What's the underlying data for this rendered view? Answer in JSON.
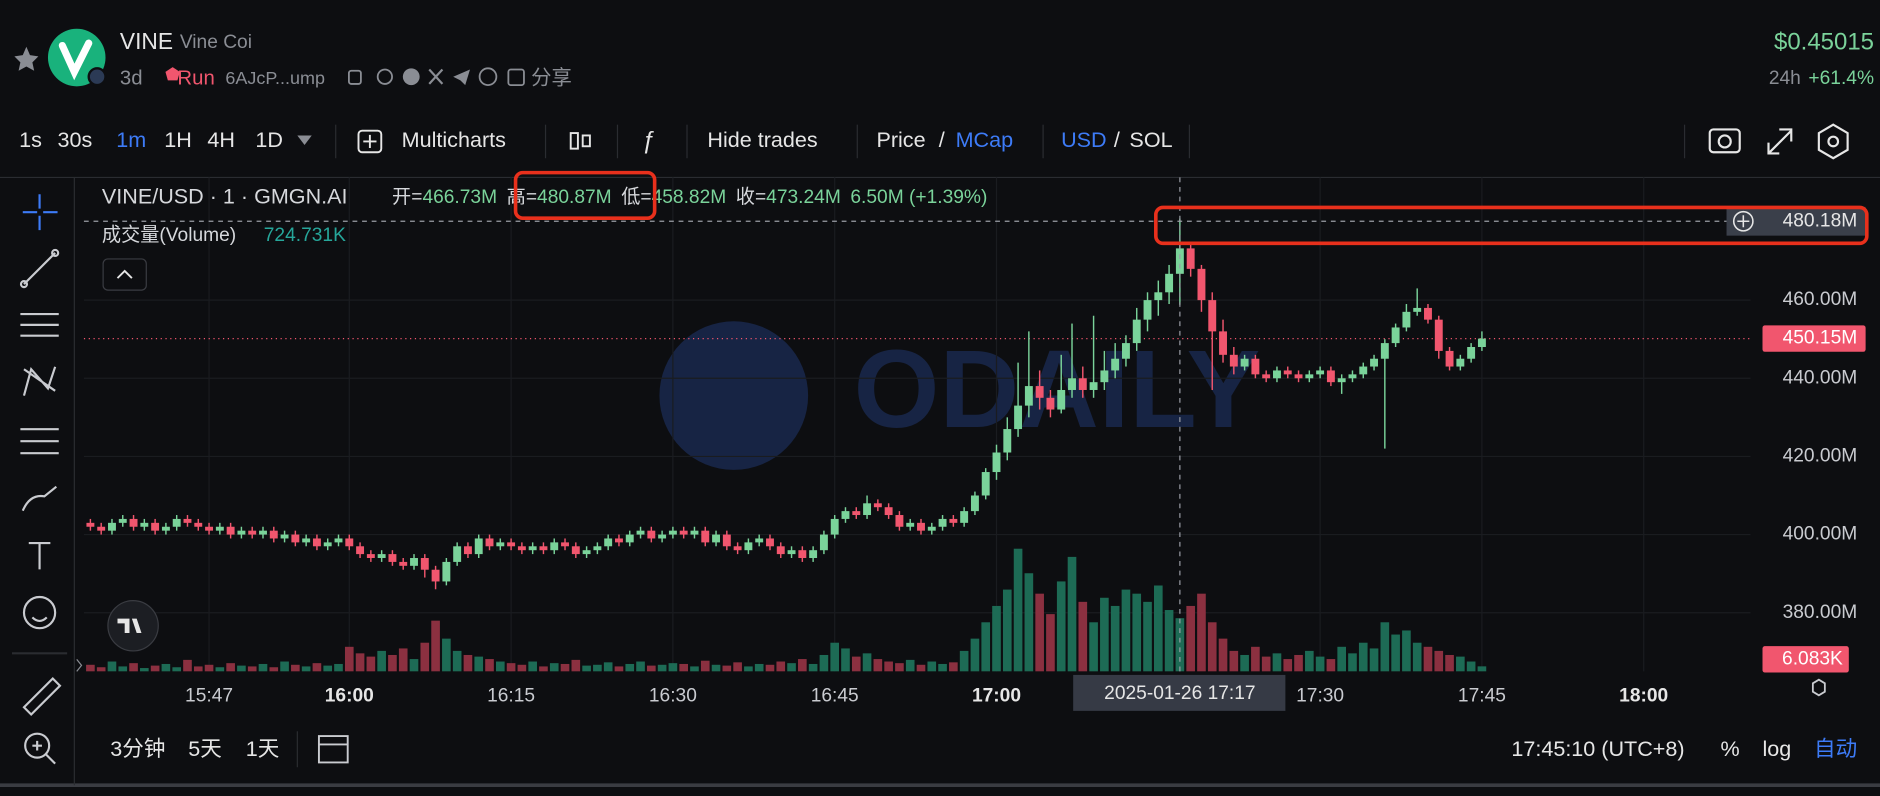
{
  "header": {
    "symbol": "VINE",
    "name": "Vine Coi",
    "age": "3d",
    "run": "Run",
    "address": "6AJcP...ump",
    "share": "分享",
    "price": "$0.45015",
    "period": "24h",
    "change": "+61.4%"
  },
  "toolbar": {
    "intervals": [
      "1s",
      "30s",
      "1m",
      "1H",
      "4H",
      "1D"
    ],
    "active_interval": 2,
    "multicharts": "Multicharts",
    "hide_trades": "Hide trades",
    "price": "Price",
    "separator": "/",
    "mcap": "MCap",
    "usd": "USD",
    "sol": "SOL"
  },
  "legend": {
    "pair": "VINE/USD · 1 · GMGN.AI",
    "items": [
      {
        "key": "开=",
        "value": "466.73M"
      },
      {
        "key": "高=",
        "value": "480.87M"
      },
      {
        "key": "低=",
        "value": "458.82M"
      },
      {
        "key": "收=",
        "value": "473.24M"
      }
    ],
    "change": "6.50M (+1.39%)",
    "volume_label": "成交量(Volume)",
    "volume_value": "724.731K"
  },
  "watermark": "ODAILY",
  "chart_data": {
    "type": "candlestick",
    "up_color": "#7ad39a",
    "down_color": "#f1566e",
    "x": [
      936,
      937,
      938,
      939,
      940,
      941,
      942,
      943,
      944,
      945,
      946,
      947,
      948,
      949,
      950,
      951,
      952,
      953,
      954,
      955,
      956,
      957,
      958,
      959,
      960,
      961,
      962,
      963,
      964,
      965,
      966,
      967,
      968,
      969,
      970,
      971,
      972,
      973,
      974,
      975,
      976,
      977,
      978,
      979,
      980,
      981,
      982,
      983,
      984,
      985,
      986,
      987,
      988,
      989,
      990,
      991,
      992,
      993,
      994,
      995,
      996,
      997,
      998,
      999,
      1000,
      1001,
      1002,
      1003,
      1004,
      1005,
      1006,
      1007,
      1008,
      1009,
      1010,
      1011,
      1012,
      1013,
      1014,
      1015,
      1016,
      1017,
      1018,
      1019,
      1020,
      1021,
      1022,
      1023,
      1024,
      1025,
      1026,
      1027,
      1028,
      1029,
      1030,
      1031,
      1032,
      1033,
      1034,
      1035,
      1036,
      1037,
      1038,
      1039,
      1040,
      1041,
      1042,
      1043,
      1044,
      1045,
      1046,
      1047,
      1048,
      1049,
      1050,
      1051,
      1052,
      1053,
      1054,
      1055,
      1056,
      1057,
      1058,
      1059,
      1060,
      1061,
      1062,
      1063,
      1064,
      1065
    ],
    "open": [
      403,
      402,
      401,
      403,
      404,
      402,
      403,
      401,
      402,
      404,
      403,
      402,
      401,
      402,
      400,
      401,
      400,
      401,
      399,
      400,
      398,
      399,
      397,
      398,
      399,
      397,
      395,
      394,
      395,
      393,
      392,
      394,
      391,
      388,
      393,
      397,
      395,
      399,
      397,
      398,
      397,
      396,
      397,
      396,
      398,
      397,
      395,
      396,
      397,
      399,
      398,
      400,
      401,
      399,
      400,
      401,
      400,
      401,
      398,
      400,
      397,
      396,
      398,
      399,
      397,
      395,
      396,
      394,
      396,
      400,
      404,
      406,
      405,
      408,
      407,
      405,
      402,
      403,
      401,
      402,
      404,
      403,
      406,
      410,
      416,
      421,
      427,
      433,
      438,
      435,
      432,
      437,
      440,
      437,
      439,
      442,
      445,
      449,
      455,
      460,
      462,
      466.73,
      473.24,
      468,
      460,
      452,
      446,
      443,
      445,
      441,
      440,
      442,
      441,
      440,
      441,
      442,
      439,
      440,
      441,
      443,
      445,
      449,
      453,
      457,
      458,
      455,
      447,
      443,
      445,
      448
    ],
    "high": [
      404,
      403,
      404,
      405,
      405,
      404,
      404,
      403,
      405,
      405,
      404,
      403,
      403,
      403,
      402,
      402,
      402,
      402,
      401,
      401,
      400,
      400,
      399,
      400,
      400,
      398,
      396,
      396,
      396,
      394,
      395,
      395,
      392,
      394,
      398,
      398,
      400,
      400,
      399,
      399,
      398,
      398,
      398,
      399,
      399,
      398,
      397,
      398,
      400,
      400,
      401,
      402,
      402,
      401,
      402,
      402,
      402,
      402,
      401,
      401,
      398,
      399,
      400,
      400,
      398,
      397,
      397,
      397,
      401,
      405,
      407,
      407,
      410,
      409,
      408,
      406,
      404,
      404,
      403,
      405,
      405,
      407,
      411,
      417,
      423,
      430,
      444,
      452,
      442,
      437,
      446,
      454,
      443,
      456,
      447,
      449,
      451,
      458,
      462,
      465,
      469,
      480.87,
      475,
      469,
      462,
      455,
      448,
      446,
      446,
      442,
      443,
      443,
      442,
      442,
      443,
      443,
      441,
      442,
      444,
      446,
      450,
      454,
      459,
      463,
      459,
      456,
      448,
      446,
      449,
      452
    ],
    "low": [
      401,
      400,
      400,
      402,
      401,
      401,
      400,
      400,
      401,
      402,
      401,
      400,
      400,
      399,
      399,
      399,
      399,
      398,
      398,
      397,
      397,
      396,
      396,
      397,
      396,
      394,
      393,
      393,
      392,
      391,
      391,
      389,
      386,
      387,
      392,
      394,
      394,
      396,
      396,
      396,
      395,
      395,
      395,
      395,
      396,
      394,
      394,
      395,
      396,
      397,
      397,
      399,
      398,
      398,
      399,
      399,
      399,
      397,
      397,
      396,
      395,
      395,
      397,
      396,
      394,
      394,
      393,
      393,
      395,
      399,
      403,
      404,
      404,
      406,
      404,
      401,
      401,
      400,
      400,
      401,
      402,
      402,
      405,
      409,
      414,
      419,
      425,
      430,
      432,
      430,
      431,
      435,
      435,
      435,
      437,
      440,
      443,
      447,
      452,
      456,
      459,
      458.82,
      466,
      457,
      437,
      444,
      441,
      442,
      440,
      439,
      439,
      440,
      439,
      439,
      440,
      438,
      436,
      439,
      440,
      442,
      422,
      448,
      452,
      456,
      454,
      445,
      442,
      442,
      444,
      447
    ],
    "close": [
      402,
      401,
      403,
      404,
      402,
      403,
      401,
      402,
      404,
      403,
      402,
      401,
      402,
      400,
      401,
      400,
      401,
      399,
      400,
      398,
      399,
      397,
      398,
      399,
      397,
      395,
      394,
      395,
      393,
      392,
      394,
      391,
      388,
      393,
      397,
      395,
      399,
      397,
      398,
      397,
      396,
      397,
      396,
      398,
      397,
      395,
      396,
      397,
      399,
      398,
      400,
      401,
      399,
      400,
      401,
      400,
      401,
      398,
      400,
      397,
      396,
      398,
      399,
      397,
      395,
      396,
      394,
      396,
      400,
      404,
      406,
      405,
      408,
      407,
      405,
      402,
      403,
      401,
      402,
      404,
      403,
      406,
      410,
      416,
      421,
      427,
      433,
      438,
      435,
      432,
      437,
      440,
      437,
      439,
      442,
      445,
      449,
      455,
      460,
      462,
      466.73,
      473.24,
      468,
      460,
      452,
      446,
      443,
      445,
      441,
      440,
      442,
      441,
      440,
      441,
      442,
      439,
      440,
      441,
      443,
      445,
      449,
      453,
      457,
      458,
      455,
      447,
      443,
      445,
      448,
      450.15
    ],
    "volume": {
      "ylim": [
        0,
        220
      ],
      "up_color": "#1d6b55",
      "down_color": "#8b3040",
      "last_label": "6.083K",
      "values": [
        8,
        5,
        12,
        6,
        10,
        4,
        7,
        9,
        5,
        14,
        6,
        8,
        5,
        10,
        7,
        6,
        9,
        5,
        12,
        8,
        6,
        10,
        7,
        9,
        30,
        22,
        18,
        25,
        20,
        28,
        15,
        35,
        62,
        40,
        25,
        20,
        18,
        15,
        12,
        10,
        8,
        12,
        6,
        10,
        9,
        14,
        7,
        8,
        11,
        6,
        9,
        12,
        7,
        8,
        10,
        9,
        6,
        13,
        8,
        7,
        11,
        6,
        9,
        8,
        12,
        10,
        15,
        9,
        20,
        35,
        28,
        18,
        22,
        15,
        12,
        10,
        14,
        8,
        12,
        9,
        11,
        25,
        40,
        60,
        80,
        100,
        150,
        120,
        95,
        70,
        110,
        140,
        85,
        60,
        90,
        80,
        100,
        95,
        85,
        105,
        75,
        65,
        80,
        95,
        60,
        40,
        25,
        20,
        30,
        18,
        22,
        15,
        20,
        25,
        18,
        15,
        30,
        22,
        35,
        28,
        60,
        45,
        50,
        35,
        30,
        25,
        20,
        18,
        12,
        6.083
      ]
    },
    "xlim": [
      935.4,
      1089.9
    ],
    "ylim": [
      365,
      491.4
    ],
    "xticks": [
      {
        "value": 947,
        "label": "15:47"
      },
      {
        "value": 960,
        "label": "16:00",
        "bold": true
      },
      {
        "value": 975,
        "label": "16:15"
      },
      {
        "value": 990,
        "label": "16:30"
      },
      {
        "value": 1005,
        "label": "16:45"
      },
      {
        "value": 1020,
        "label": "17:00",
        "bold": true
      },
      {
        "value": 1050,
        "label": "17:30"
      },
      {
        "value": 1065,
        "label": "17:45"
      },
      {
        "value": 1080,
        "label": "18:00",
        "bold": true
      }
    ],
    "yticks": [
      {
        "value": 380,
        "label": "380.00M"
      },
      {
        "value": 400,
        "label": "400.00M"
      },
      {
        "value": 420,
        "label": "420.00M"
      },
      {
        "value": 440,
        "label": "440.00M"
      },
      {
        "value": 460,
        "label": "460.00M"
      }
    ],
    "grid": true,
    "crosshair": {
      "x": 1037,
      "y": 480.18,
      "y_label": "480.18M",
      "x_label": "2025-01-26  17:17"
    },
    "last_price": {
      "value": 450.15,
      "label": "450.15M",
      "color": "#f1566e"
    }
  },
  "footer": {
    "ranges": [
      "3分钟",
      "5天",
      "1天"
    ],
    "clock": "17:45:10 (UTC+8)",
    "percent": "%",
    "log": "log",
    "auto": "自动"
  }
}
